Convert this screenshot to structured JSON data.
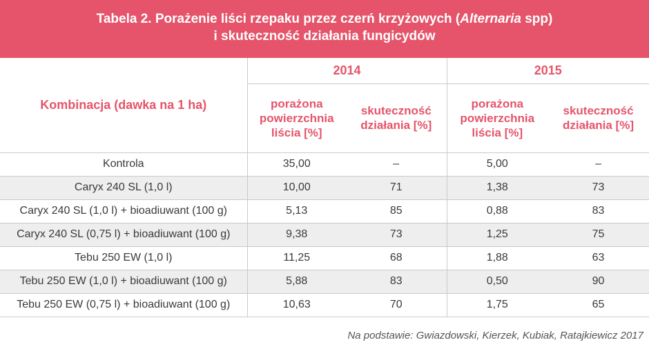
{
  "title": {
    "prefix": "Tabela 2. Porażenie liści rzepaku przez czerń krzyżowych (",
    "italic": "Alternaria",
    "suffix": " spp)",
    "line2": "i skuteczność działania fungicydów"
  },
  "header": {
    "combination_label": "Kombinacja (dawka na 1 ha)",
    "years": [
      "2014",
      "2015"
    ],
    "col_damage": "porażona powierzchnia liścia [%]",
    "col_efficacy": "skuteczność działania [%]"
  },
  "rows": [
    {
      "name": "Kontrola",
      "d2014": "35,00",
      "e2014": "–",
      "d2015": "5,00",
      "e2015": "–"
    },
    {
      "name": "Caryx 240 SL (1,0 l)",
      "d2014": "10,00",
      "e2014": "71",
      "d2015": "1,38",
      "e2015": "73"
    },
    {
      "name": "Caryx 240 SL (1,0 l) + bioadiuwant (100 g)",
      "d2014": "5,13",
      "e2014": "85",
      "d2015": "0,88",
      "e2015": "83"
    },
    {
      "name": "Caryx 240 SL (0,75 l) + bioadiuwant (100 g)",
      "d2014": "9,38",
      "e2014": "73",
      "d2015": "1,25",
      "e2015": "75"
    },
    {
      "name": "Tebu 250 EW (1,0 l)",
      "d2014": "11,25",
      "e2014": "68",
      "d2015": "1,88",
      "e2015": "63"
    },
    {
      "name": "Tebu 250 EW (1,0 l) + bioadiuwant (100 g)",
      "d2014": "5,88",
      "e2014": "83",
      "d2015": "0,50",
      "e2015": "90"
    },
    {
      "name": "Tebu 250 EW (0,75 l) + bioadiuwant (100 g)",
      "d2014": "10,63",
      "e2014": "70",
      "d2015": "1,75",
      "e2015": "65"
    }
  ],
  "source": "Na podstawie: Gwiazdowski, Kierzek, Kubiak, Ratajkiewicz 2017",
  "colors": {
    "accent": "#e5546a",
    "stripe": "#eeeeee",
    "text": "#3a3a3a"
  }
}
